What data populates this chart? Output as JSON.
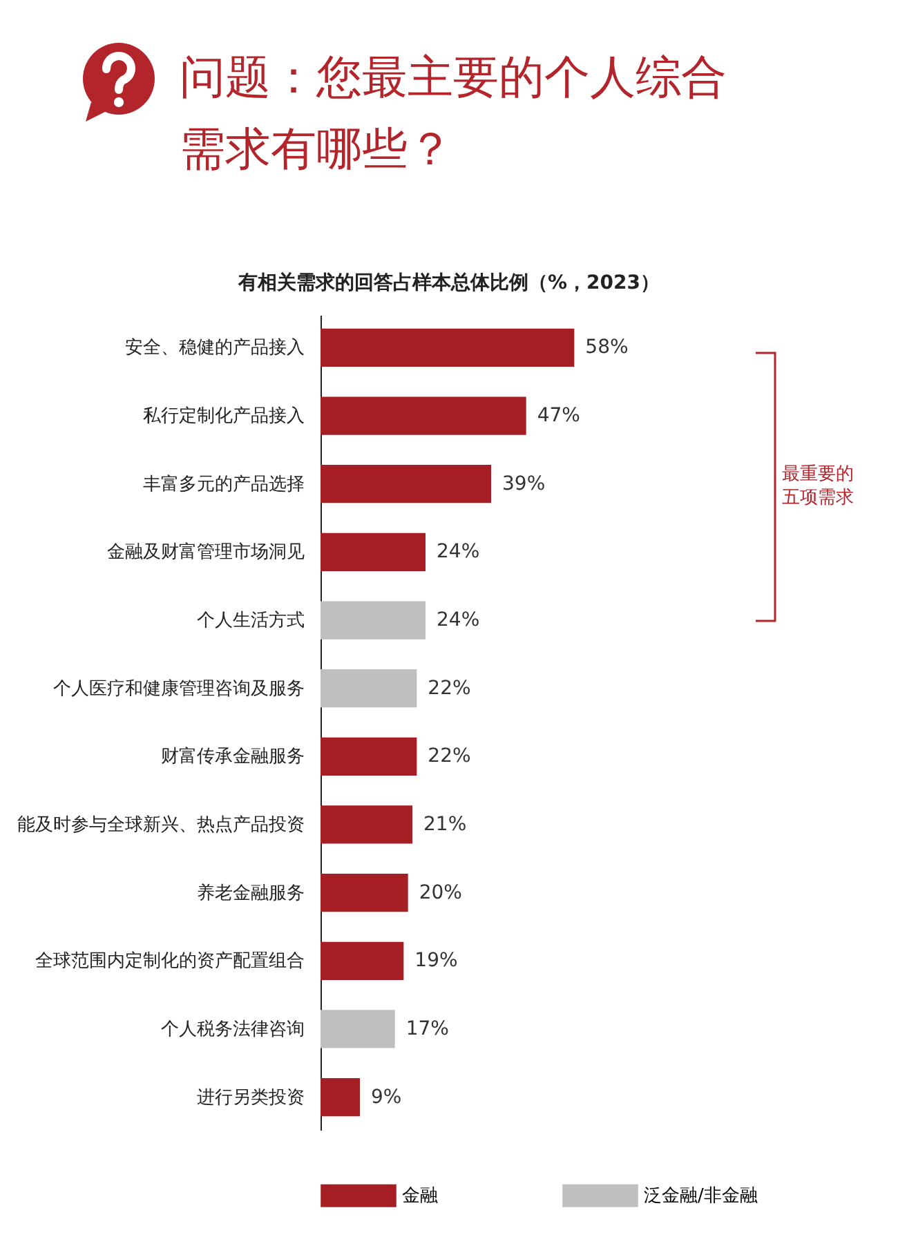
{
  "chart_data": {
    "type": "bar",
    "orientation": "horizontal",
    "title": "问题：您最主要的个人综合需求有哪些？",
    "subtitle": "有相关需求的回答占样本总体比例（%，2023）",
    "categories": [
      "安全、稳健的产品接入",
      "私行定制化产品接入",
      "丰富多元的产品选择",
      "金融及财富管理市场洞见",
      "个人生活方式",
      "个人医疗和健康管理咨询及服务",
      "财富传承金融服务",
      "能及时参与全球新兴、热点产品投资",
      "养老金融服务",
      "全球范围内定制化的资产配置组合",
      "个人税务法律咨询",
      "进行另类投资"
    ],
    "series": [
      {
        "name": "金融",
        "color": "#a51e24",
        "values": [
          58,
          47,
          39,
          24,
          null,
          null,
          22,
          21,
          20,
          19,
          null,
          9
        ],
        "value_labels": [
          "58%",
          "47%",
          "39%",
          "24%",
          null,
          null,
          "22%",
          "21%",
          "20%",
          "19%",
          null,
          "9%"
        ]
      },
      {
        "name": "泛金融/非金融",
        "color": "#bfbfbf",
        "values": [
          null,
          null,
          null,
          null,
          24,
          22,
          null,
          null,
          null,
          null,
          17,
          null
        ],
        "value_labels": [
          null,
          null,
          null,
          null,
          "24%",
          "22%",
          null,
          null,
          null,
          null,
          "17%",
          null
        ]
      }
    ],
    "annotations": [
      "最重要的五项需求"
    ],
    "legend": "bottom"
  }
}
